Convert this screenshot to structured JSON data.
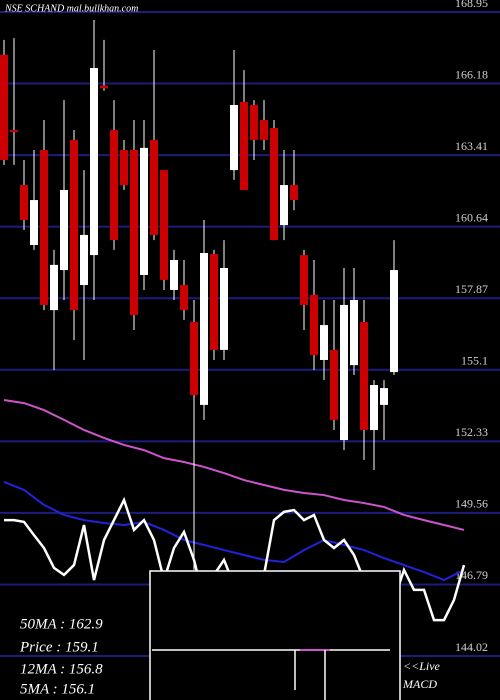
{
  "chart_data": {
    "type": "candlestick",
    "title": "NSE SCHAND mal.bullkhan.com",
    "ylim": [
      144.02,
      168.95
    ],
    "yticks": [
      168.95,
      166.18,
      163.41,
      160.64,
      157.87,
      155.1,
      152.33,
      149.56,
      146.79,
      144.02
    ],
    "grid": true,
    "up_color": "#ffffff",
    "down_color": "#cc0000",
    "grid_color": "#1c1c7c",
    "open": [
      167.29,
      164.38,
      162.25,
      159.93,
      163.61,
      157.41,
      158.96,
      164.0,
      158.38,
      159.54,
      166.1,
      164.38,
      163.61,
      163.61,
      158.77,
      164.0,
      162.83,
      158.19,
      158.38,
      156.95,
      153.74,
      159.58,
      155.87,
      162.83,
      165.47,
      165.35,
      164.77,
      164.46,
      160.7,
      162.25,
      159.54,
      158.0,
      155.48,
      155.87,
      152.38,
      155.28,
      156.95,
      152.77,
      153.74,
      155.01
    ],
    "high": [
      167.87,
      167.94,
      163.22,
      163.61,
      164.77,
      159.74,
      165.54,
      164.38,
      162.83,
      168.64,
      167.87,
      165.54,
      164.0,
      164.77,
      164.77,
      167.48,
      162.83,
      159.74,
      159.35,
      157.8,
      160.9,
      159.74,
      160.12,
      167.48,
      166.7,
      165.54,
      165.54,
      164.77,
      163.61,
      163.61,
      159.74,
      159.35,
      157.8,
      157.8,
      159.04,
      159.04,
      157.8,
      154.7,
      154.7,
      160.12
    ],
    "low": [
      163.03,
      163.03,
      160.51,
      159.74,
      157.41,
      155.09,
      157.8,
      156.25,
      155.48,
      157.8,
      165.9,
      159.74,
      162.06,
      156.64,
      158.19,
      160.12,
      158.19,
      157.8,
      157.03,
      147.35,
      153.16,
      155.48,
      155.48,
      162.45,
      162.06,
      163.22,
      163.61,
      160.12,
      160.12,
      161.28,
      156.64,
      155.09,
      154.7,
      152.77,
      151.99,
      154.9,
      151.61,
      151.22,
      152.38,
      154.9
    ],
    "close": [
      163.22,
      164.3,
      160.9,
      161.67,
      157.61,
      159.16,
      162.06,
      157.41,
      160.32,
      166.78,
      166.0,
      160.12,
      162.25,
      157.22,
      163.69,
      160.32,
      158.58,
      159.35,
      157.41,
      154.12,
      159.62,
      155.87,
      159.04,
      165.35,
      162.06,
      164.0,
      164.0,
      160.12,
      162.25,
      161.67,
      157.61,
      155.67,
      156.83,
      153.16,
      157.61,
      157.8,
      152.77,
      154.51,
      154.39,
      158.96
    ],
    "series": [
      {
        "color": "#cc55cc",
        "width": 2,
        "x": [
          0,
          2,
          4,
          6,
          8,
          10,
          12,
          14,
          16,
          18,
          20,
          22,
          24,
          26,
          28,
          30,
          32,
          34,
          36,
          38,
          40,
          42,
          44,
          46
        ],
        "values": [
          153.93,
          153.81,
          153.54,
          153.16,
          152.77,
          152.46,
          152.19,
          151.99,
          151.68,
          151.53,
          151.34,
          151.1,
          150.83,
          150.64,
          150.45,
          150.33,
          150.25,
          150.06,
          149.94,
          149.79,
          149.48,
          149.28,
          149.09,
          148.9
        ]
      },
      {
        "color": "#2222dd",
        "width": 2,
        "x": [
          0,
          2,
          4,
          6,
          8,
          10,
          12,
          14,
          16,
          18,
          20,
          22,
          24,
          26,
          28,
          30,
          32,
          34,
          36,
          38,
          40,
          42,
          44,
          46
        ],
        "values": [
          150.76,
          150.45,
          149.87,
          149.48,
          149.28,
          149.17,
          149.09,
          149.21,
          148.9,
          148.51,
          148.32,
          148.12,
          147.93,
          147.74,
          147.66,
          148.12,
          148.51,
          148.32,
          148.12,
          147.81,
          147.54,
          147.27,
          146.96,
          147.35
        ]
      },
      {
        "color": "#ffffff",
        "width": 2.5,
        "x": [
          0,
          1,
          2,
          3,
          4,
          5,
          6,
          7,
          8,
          9,
          10,
          11,
          12,
          13,
          14,
          15,
          16,
          17,
          18,
          19,
          20,
          21,
          22,
          23,
          24,
          25,
          26,
          27,
          28,
          29,
          30,
          31,
          32,
          33,
          34,
          35,
          36,
          37,
          38,
          39,
          40,
          41,
          42,
          43,
          44,
          45,
          46
        ],
        "values": [
          149.28,
          149.28,
          149.21,
          148.7,
          148.2,
          147.43,
          147.16,
          147.54,
          149.09,
          146.96,
          148.51,
          149.28,
          150.06,
          148.9,
          149.28,
          148.51,
          146.96,
          148.2,
          148.82,
          147.74,
          146.19,
          147.16,
          147.74,
          146.77,
          147.04,
          146.58,
          147.16,
          149.28,
          149.6,
          149.67,
          149.28,
          149.48,
          148.51,
          148.2,
          148.51,
          147.93,
          146.96,
          146.38,
          146.77,
          146.19,
          147.35,
          146.58,
          146.58,
          145.41,
          145.41,
          146.19,
          147.54
        ]
      }
    ],
    "info": [
      "50MA : 162.9",
      "Price  : 159.1",
      "12MA : 156.8",
      "5MA : 156.1"
    ],
    "live": "<<Live",
    "indicator": "MACD"
  }
}
